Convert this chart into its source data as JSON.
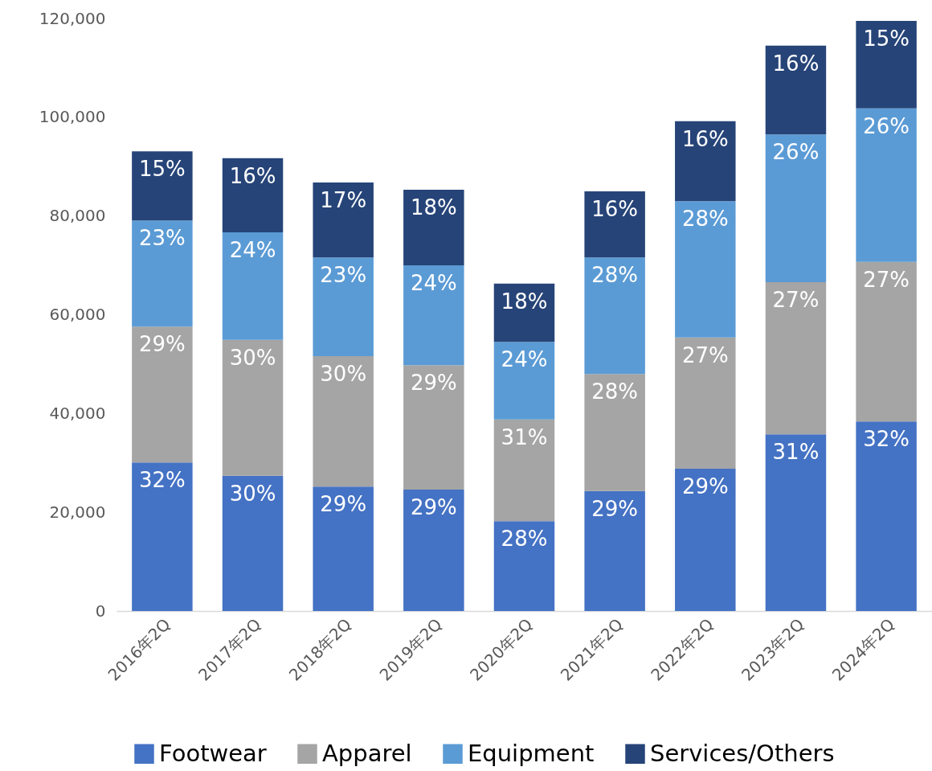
{
  "chart_data": {
    "type": "bar",
    "stacked": true,
    "categories": [
      "2016年2Q",
      "2017年2Q",
      "2018年2Q",
      "2019年2Q",
      "2020年2Q",
      "2021年2Q",
      "2022年2Q",
      "2023年2Q",
      "2024年2Q"
    ],
    "series": [
      {
        "name": "Footwear",
        "color": "#4472c4",
        "values": [
          30100,
          27400,
          25200,
          24600,
          18200,
          24300,
          28800,
          35800,
          38400
        ]
      },
      {
        "name": "Apparel",
        "color": "#a5a5a5",
        "values": [
          27500,
          27500,
          26400,
          25200,
          20600,
          23700,
          26600,
          30800,
          32300
        ]
      },
      {
        "name": "Equipment",
        "color": "#5b9bd5",
        "values": [
          21500,
          21800,
          20000,
          20200,
          15700,
          23600,
          27600,
          29900,
          31100
        ]
      },
      {
        "name": "Services/Others",
        "color": "#264478",
        "values": [
          14000,
          15000,
          15200,
          15300,
          11800,
          13400,
          16200,
          18000,
          17700
        ]
      }
    ],
    "annotations": [
      {
        "text": "32%",
        "x": "2016年2Q",
        "y": 30100
      },
      {
        "text": "30%",
        "x": "2017年2Q",
        "y": 27400
      },
      {
        "text": "29%",
        "x": "2018年2Q",
        "y": 25200
      },
      {
        "text": "29%",
        "x": "2019年2Q",
        "y": 24600
      },
      {
        "text": "28%",
        "x": "2020年2Q",
        "y": 18200
      },
      {
        "text": "29%",
        "x": "2021年2Q",
        "y": 24300
      },
      {
        "text": "29%",
        "x": "2022年2Q",
        "y": 28800
      },
      {
        "text": "31%",
        "x": "2023年2Q",
        "y": 35800
      },
      {
        "text": "32%",
        "x": "2024年2Q",
        "y": 38400
      },
      {
        "text": "29%",
        "x": "2016年2Q",
        "y": 57600
      },
      {
        "text": "30%",
        "x": "2017年2Q",
        "y": 54900
      },
      {
        "text": "30%",
        "x": "2018年2Q",
        "y": 51600
      },
      {
        "text": "29%",
        "x": "2019年2Q",
        "y": 49800
      },
      {
        "text": "31%",
        "x": "2020年2Q",
        "y": 38800
      },
      {
        "text": "28%",
        "x": "2021年2Q",
        "y": 48000
      },
      {
        "text": "27%",
        "x": "2022年2Q",
        "y": 55400
      },
      {
        "text": "27%",
        "x": "2023年2Q",
        "y": 66600
      },
      {
        "text": "27%",
        "x": "2024年2Q",
        "y": 70700
      },
      {
        "text": "23%",
        "x": "2016年2Q",
        "y": 79100
      },
      {
        "text": "24%",
        "x": "2017年2Q",
        "y": 76700
      },
      {
        "text": "23%",
        "x": "2018年2Q",
        "y": 71600
      },
      {
        "text": "24%",
        "x": "2019年2Q",
        "y": 70000
      },
      {
        "text": "24%",
        "x": "2020年2Q",
        "y": 54500
      },
      {
        "text": "28%",
        "x": "2021年2Q",
        "y": 71600
      },
      {
        "text": "28%",
        "x": "2022年2Q",
        "y": 83000
      },
      {
        "text": "26%",
        "x": "2023年2Q",
        "y": 96500
      },
      {
        "text": "26%",
        "x": "2024年2Q",
        "y": 101800
      },
      {
        "text": "15%",
        "x": "2016年2Q",
        "y": 93100
      },
      {
        "text": "16%",
        "x": "2017年2Q",
        "y": 91700
      },
      {
        "text": "17%",
        "x": "2018年2Q",
        "y": 86800
      },
      {
        "text": "18%",
        "x": "2019年2Q",
        "y": 85300
      },
      {
        "text": "18%",
        "x": "2020年2Q",
        "y": 66300
      },
      {
        "text": "16%",
        "x": "2021年2Q",
        "y": 85000
      },
      {
        "text": "16%",
        "x": "2022年2Q",
        "y": 99200
      },
      {
        "text": "16%",
        "x": "2023年2Q",
        "y": 114500
      },
      {
        "text": "15%",
        "x": "2024年2Q",
        "y": 119500
      }
    ],
    "ylim": [
      0,
      120000
    ],
    "yticks": [
      0,
      {
        "value": 20000,
        "label": "20,000"
      },
      {
        "value": 40000,
        "label": "40,000"
      },
      {
        "value": 60000,
        "label": "60,000"
      },
      {
        "value": 80000,
        "label": "80,000"
      },
      {
        "value": 100000,
        "label": "100,000"
      },
      {
        "value": 120000,
        "label": "120,000"
      }
    ],
    "grid": false,
    "legend": "bottom"
  }
}
